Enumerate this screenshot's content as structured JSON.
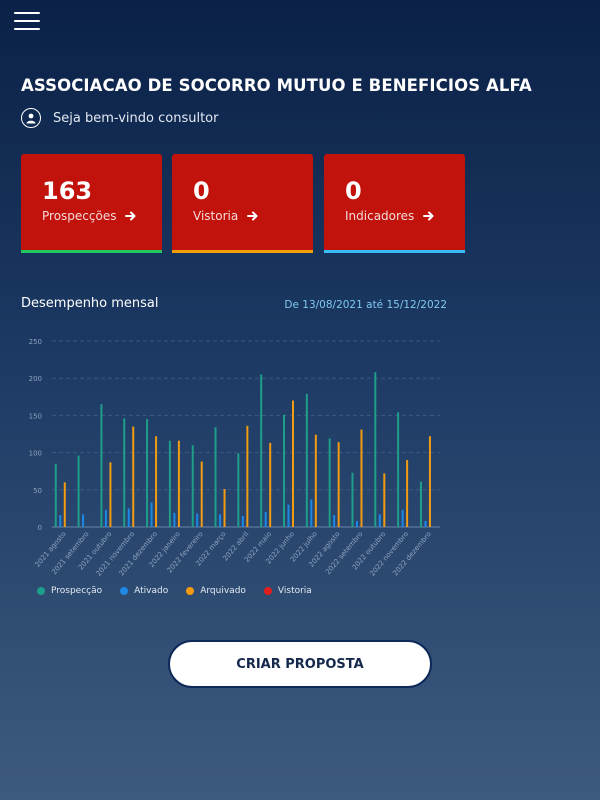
{
  "header": {
    "menu_icon": "menu-icon"
  },
  "title": "ASSOCIACAO DE SOCORRO MUTUO E BENEFICIOS ALFA",
  "welcome": {
    "icon": "user-icon",
    "text": "Seja bem-vindo consultor"
  },
  "cards": [
    {
      "value": "163",
      "label": "Prospecções",
      "accent": "#22c55e"
    },
    {
      "value": "0",
      "label": "Vistoria",
      "accent": "#f59e0b"
    },
    {
      "value": "0",
      "label": "Indicadores",
      "accent": "#38bdf8"
    }
  ],
  "colors": {
    "card_bg": "#c2120c"
  },
  "chart_section": {
    "title": "Desempenho mensal",
    "date_range": "De 13/08/2021 até 15/12/2022"
  },
  "chart_data": {
    "type": "bar",
    "categories": [
      "2021 agosto",
      "2021 setembro",
      "2021 outubro",
      "2021 novembro",
      "2021 dezembro",
      "2022 janeiro",
      "2022 fevereiro",
      "2022 março",
      "2022 abril",
      "2022 maio",
      "2022 junho",
      "2022 julho",
      "2022 agosto",
      "2022 setembro",
      "2022 outubro",
      "2022 novembro",
      "2022 dezembro"
    ],
    "series": [
      {
        "name": "Prospecção",
        "color": "#1f9e89",
        "values": [
          85,
          96,
          165,
          146,
          145,
          116,
          110,
          134,
          99,
          205,
          151,
          179,
          119,
          73,
          208,
          154,
          61
        ]
      },
      {
        "name": "Ativado",
        "color": "#1e88e5",
        "values": [
          16,
          17,
          23,
          25,
          33,
          19,
          18,
          17,
          15,
          20,
          30,
          37,
          16,
          8,
          17,
          23,
          8
        ]
      },
      {
        "name": "Arquivado",
        "color": "#f39c12",
        "values": [
          60,
          0,
          87,
          135,
          122,
          116,
          88,
          51,
          136,
          113,
          170,
          124,
          114,
          131,
          72,
          90,
          122
        ]
      },
      {
        "name": "Vistoria",
        "color": "#e11d1d",
        "values": [
          0,
          0,
          0,
          0,
          0,
          0,
          0,
          0,
          0,
          0,
          0,
          0,
          0,
          0,
          0,
          0,
          0
        ]
      }
    ],
    "yticks": [
      "0",
      "50",
      "100",
      "150",
      "200",
      "250"
    ],
    "ylim": [
      0,
      250
    ]
  },
  "cta": {
    "label": "CRIAR PROPOSTA"
  }
}
